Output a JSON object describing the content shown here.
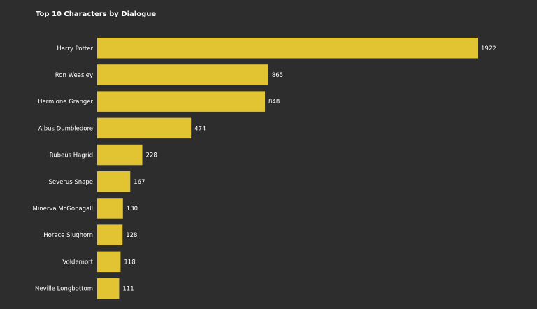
{
  "chart_data": {
    "type": "bar",
    "orientation": "horizontal",
    "title": "Top 10 Characters by Dialogue",
    "xlabel": "",
    "ylabel": "",
    "categories": [
      "Harry Potter",
      "Ron Weasley",
      "Hermione Granger",
      "Albus Dumbledore",
      "Rubeus Hagrid",
      "Severus Snape",
      "Minerva McGonagall",
      "Horace Slughorn",
      "Voldemort",
      "Neville Longbottom"
    ],
    "values": [
      1922,
      865,
      848,
      474,
      228,
      167,
      130,
      128,
      118,
      111
    ],
    "bar_color": "#e2c433",
    "background_color": "#2d2d2d",
    "text_color": "#ffffff",
    "grid": false,
    "legend": false,
    "data_labels": true
  }
}
